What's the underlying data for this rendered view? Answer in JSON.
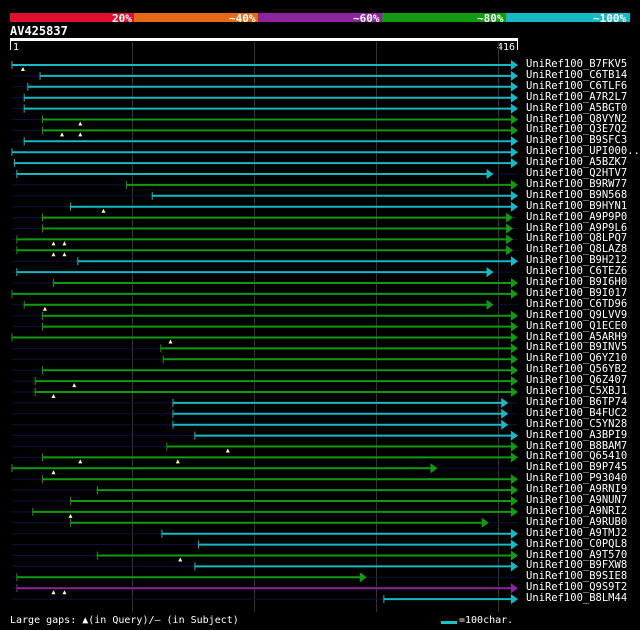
{
  "legend": {
    "colors": [
      "#e0102c",
      "#e66a15",
      "#8c259b",
      "#139a13",
      "#16b9c4"
    ],
    "labels": [
      "20%",
      "~40%",
      "~60%",
      "~80%",
      "~100%"
    ]
  },
  "query": {
    "id": "AV425837",
    "start": "1",
    "end": "416",
    "length": 416
  },
  "footer": {
    "gaps_text": "Large gaps: ▲(in Query)/— (in Subject)",
    "scale_text": "=100char."
  },
  "colors": {
    "cyan": "#16b9c4",
    "green": "#139a13",
    "purple": "#8c259b",
    "navy": "#101040",
    "marker": "#ffffaa"
  },
  "hits": [
    {
      "label": "UniRef100_B7FKV5",
      "color": "cyan",
      "start": 1,
      "end": 416,
      "dots": [
        10
      ]
    },
    {
      "label": "UniRef100_C6TB14",
      "color": "cyan",
      "start": 24,
      "end": 416,
      "dots": []
    },
    {
      "label": "UniRef100_C6TLF6",
      "color": "cyan",
      "start": 14,
      "end": 416,
      "dots": []
    },
    {
      "label": "UniRef100_A7R2L7",
      "color": "cyan",
      "start": 11,
      "end": 416,
      "dots": []
    },
    {
      "label": "UniRef100_A5BGT0",
      "color": "cyan",
      "start": 11,
      "end": 416,
      "dots": []
    },
    {
      "label": "UniRef100_Q8VYN2",
      "color": "green",
      "start": 26,
      "end": 416,
      "dots": [
        57
      ]
    },
    {
      "label": "UniRef100_Q3E7Q2",
      "color": "green",
      "start": 26,
      "end": 416,
      "dots": [
        42,
        57
      ]
    },
    {
      "label": "UniRef100_B9SFC3",
      "color": "cyan",
      "start": 11,
      "end": 416,
      "dots": []
    },
    {
      "label": "UniRef100_UPI000..",
      "color": "cyan",
      "start": 1,
      "end": 416,
      "dots": []
    },
    {
      "label": "UniRef100_A5BZK7",
      "color": "cyan",
      "start": 3,
      "end": 416,
      "dots": []
    },
    {
      "label": "UniRef100_Q2HTV7",
      "color": "cyan",
      "start": 5,
      "end": 396,
      "dots": []
    },
    {
      "label": "UniRef100_B9RW77",
      "color": "green",
      "start": 95,
      "end": 416,
      "dots": []
    },
    {
      "label": "UniRef100_B9N568",
      "color": "cyan",
      "start": 116,
      "end": 416,
      "dots": []
    },
    {
      "label": "UniRef100_B9HYN1",
      "color": "cyan",
      "start": 49,
      "end": 416,
      "dots": [
        76
      ]
    },
    {
      "label": "UniRef100_A9P9P0",
      "color": "green",
      "start": 26,
      "end": 412,
      "dots": []
    },
    {
      "label": "UniRef100_A9P9L6",
      "color": "green",
      "start": 26,
      "end": 412,
      "dots": []
    },
    {
      "label": "UniRef100_Q8LPQ7",
      "color": "green",
      "start": 5,
      "end": 412,
      "dots": [
        35,
        44
      ]
    },
    {
      "label": "UniRef100_Q8LAZ8",
      "color": "green",
      "start": 5,
      "end": 412,
      "dots": [
        35,
        44
      ]
    },
    {
      "label": "UniRef100_B9H212",
      "color": "cyan",
      "start": 55,
      "end": 416,
      "dots": []
    },
    {
      "label": "UniRef100_C6TEZ6",
      "color": "cyan",
      "start": 5,
      "end": 396,
      "dots": []
    },
    {
      "label": "UniRef100_B9I6H0",
      "color": "green",
      "start": 35,
      "end": 416,
      "dots": []
    },
    {
      "label": "UniRef100_B9I017",
      "color": "green",
      "start": 1,
      "end": 416,
      "dots": []
    },
    {
      "label": "UniRef100_C6TD96",
      "color": "green",
      "start": 11,
      "end": 396,
      "dots": [
        28
      ]
    },
    {
      "label": "UniRef100_Q9LVV9",
      "color": "green",
      "start": 26,
      "end": 416,
      "dots": []
    },
    {
      "label": "UniRef100_Q1ECE0",
      "color": "green",
      "start": 26,
      "end": 416,
      "dots": []
    },
    {
      "label": "UniRef100_A5ARH9",
      "color": "green",
      "start": 1,
      "end": 416,
      "dots": [
        131
      ]
    },
    {
      "label": "UniRef100_B9INV5",
      "color": "green",
      "start": 123,
      "end": 416,
      "dots": []
    },
    {
      "label": "UniRef100_Q6YZ10",
      "color": "green",
      "start": 125,
      "end": 416,
      "dots": []
    },
    {
      "label": "UniRef100_Q56YB2",
      "color": "green",
      "start": 26,
      "end": 416,
      "dots": []
    },
    {
      "label": "UniRef100_Q6Z407",
      "color": "green",
      "start": 20,
      "end": 416,
      "dots": [
        52
      ]
    },
    {
      "label": "UniRef100_C5XBJ1",
      "color": "green",
      "start": 20,
      "end": 416,
      "dots": [
        35
      ]
    },
    {
      "label": "UniRef100_B6TP74",
      "color": "cyan",
      "start": 133,
      "end": 408,
      "dots": []
    },
    {
      "label": "UniRef100_B4FUC2",
      "color": "cyan",
      "start": 133,
      "end": 408,
      "dots": []
    },
    {
      "label": "UniRef100_C5YN28",
      "color": "cyan",
      "start": 133,
      "end": 408,
      "dots": []
    },
    {
      "label": "UniRef100_A3BPI9",
      "color": "cyan",
      "start": 151,
      "end": 416,
      "dots": []
    },
    {
      "label": "UniRef100_B8BAM7",
      "color": "green",
      "start": 128,
      "end": 416,
      "dots": [
        178
      ]
    },
    {
      "label": "UniRef100_Q65410",
      "color": "green",
      "start": 26,
      "end": 416,
      "dots": [
        57,
        137
      ]
    },
    {
      "label": "UniRef100_B9P745",
      "color": "green",
      "start": 1,
      "end": 350,
      "dots": [
        35
      ]
    },
    {
      "label": "UniRef100_P93040",
      "color": "green",
      "start": 26,
      "end": 416,
      "dots": []
    },
    {
      "label": "UniRef100_A9RNI9",
      "color": "green",
      "start": 71,
      "end": 416,
      "dots": []
    },
    {
      "label": "UniRef100_A9NUN7",
      "color": "green",
      "start": 49,
      "end": 416,
      "dots": []
    },
    {
      "label": "UniRef100_A9NRI2",
      "color": "green",
      "start": 18,
      "end": 416,
      "dots": [
        49
      ]
    },
    {
      "label": "UniRef100_A9RUB0",
      "color": "green",
      "start": 49,
      "end": 392,
      "dots": []
    },
    {
      "label": "UniRef100_A9TMJ2",
      "color": "cyan",
      "start": 124,
      "end": 416,
      "dots": []
    },
    {
      "label": "UniRef100_C0PQL8",
      "color": "cyan",
      "start": 154,
      "end": 416,
      "dots": []
    },
    {
      "label": "UniRef100_A9T570",
      "color": "green",
      "start": 71,
      "end": 416,
      "dots": [
        139
      ]
    },
    {
      "label": "UniRef100_B9FXW8",
      "color": "cyan",
      "start": 151,
      "end": 416,
      "dots": []
    },
    {
      "label": "UniRef100_B9SIE8",
      "color": "green",
      "start": 5,
      "end": 292,
      "dots": []
    },
    {
      "label": "UniRef100_Q9S9T2",
      "color": "purple",
      "start": 5,
      "end": 416,
      "dots": [
        35,
        44
      ]
    },
    {
      "label": "UniRef100_B8LM44",
      "color": "cyan",
      "start": 306,
      "end": 416,
      "dots": []
    }
  ]
}
